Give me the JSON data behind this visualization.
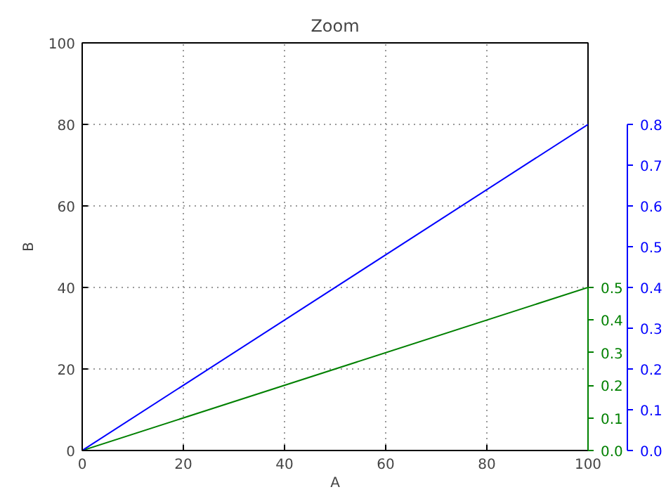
{
  "chart_data": {
    "type": "line",
    "title": "Zoom",
    "xlabel": "A",
    "ylabel": "B",
    "x": [
      0,
      100
    ],
    "xlim": [
      0,
      100
    ],
    "ylim": [
      0,
      100
    ],
    "xticks": [
      0,
      20,
      40,
      60,
      80,
      100
    ],
    "yticks": [
      0,
      20,
      40,
      60,
      80,
      100
    ],
    "y2lim": [
      0,
      1.25
    ],
    "y2ticks": [
      {
        "value": 0,
        "label": "0.0"
      },
      {
        "value": 0.1,
        "label": "0.1"
      },
      {
        "value": 0.2,
        "label": "0.2"
      },
      {
        "value": 0.3,
        "label": "0.3"
      },
      {
        "value": 0.4,
        "label": "0.4"
      },
      {
        "value": 0.5,
        "label": "0.5"
      }
    ],
    "y3lim": [
      0,
      1.0
    ],
    "y3ticks": [
      {
        "value": 0,
        "label": "0.0"
      },
      {
        "value": 0.1,
        "label": "0.1"
      },
      {
        "value": 0.2,
        "label": "0.2"
      },
      {
        "value": 0.3,
        "label": "0.3"
      },
      {
        "value": 0.4,
        "label": "0.4"
      },
      {
        "value": 0.5,
        "label": "0.5"
      },
      {
        "value": 0.6,
        "label": "0.6"
      },
      {
        "value": 0.7,
        "label": "0.7"
      },
      {
        "value": 0.8,
        "label": "0.8"
      }
    ],
    "grid": true,
    "series": [
      {
        "color": "#008000",
        "axis": "y2",
        "values": [
          0,
          0.5
        ]
      },
      {
        "color": "#0000ff",
        "axis": "y3",
        "values": [
          0,
          0.8
        ]
      }
    ]
  }
}
